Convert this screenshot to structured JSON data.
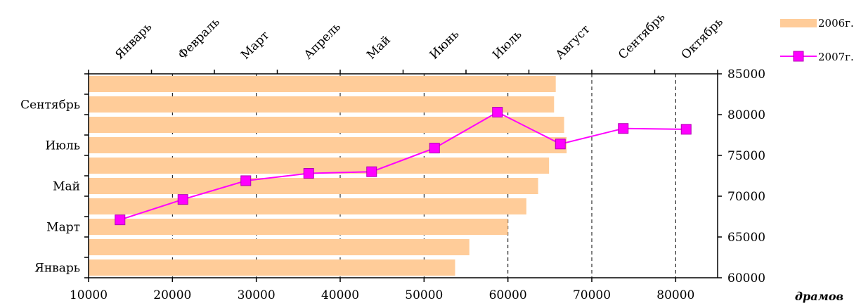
{
  "chart_data": {
    "type": "bar",
    "orientation": "horizontal",
    "unit_label": "драмов",
    "x_bottom": {
      "range": [
        10000,
        85000
      ],
      "ticks": [
        10000,
        20000,
        30000,
        40000,
        50000,
        60000,
        70000,
        80000
      ],
      "tick_labels": [
        "10000",
        "20000",
        "30000",
        "40000",
        "50000",
        "60000",
        "70000",
        "80000"
      ]
    },
    "y_left": {
      "categories": [
        "Январь",
        "Февраль",
        "Март",
        "Апрель",
        "Май",
        "Июнь",
        "Июль",
        "Август",
        "Сентябрь",
        "Октябрь"
      ],
      "shown_labels": [
        "Январь",
        "Март",
        "Май",
        "Июль",
        "Сентябрь"
      ]
    },
    "y_right": {
      "range": [
        60000,
        85000
      ],
      "ticks": [
        60000,
        65000,
        70000,
        75000,
        80000,
        85000
      ],
      "tick_labels": [
        "60000",
        "65000",
        "70000",
        "75000",
        "80000",
        "85000"
      ]
    },
    "x_top": {
      "categories": [
        "Январь",
        "Февраль",
        "Март",
        "Апрель",
        "Май",
        "Июнь",
        "Июль",
        "Август",
        "Сентябрь",
        "Октябрь"
      ]
    },
    "grid": "vertical dashed",
    "legend_position": "top-right",
    "series": [
      {
        "name": "2006г.",
        "kind": "bar",
        "color": "#FFCC99",
        "values": [
          53700,
          55400,
          60000,
          62200,
          63600,
          64900,
          67000,
          66700,
          65500,
          65700
        ]
      },
      {
        "name": "2007г.",
        "kind": "line",
        "color": "#FF00FF",
        "values": [
          67100,
          69600,
          71900,
          72800,
          73000,
          75900,
          80300,
          76400,
          78300,
          78200
        ]
      }
    ]
  }
}
